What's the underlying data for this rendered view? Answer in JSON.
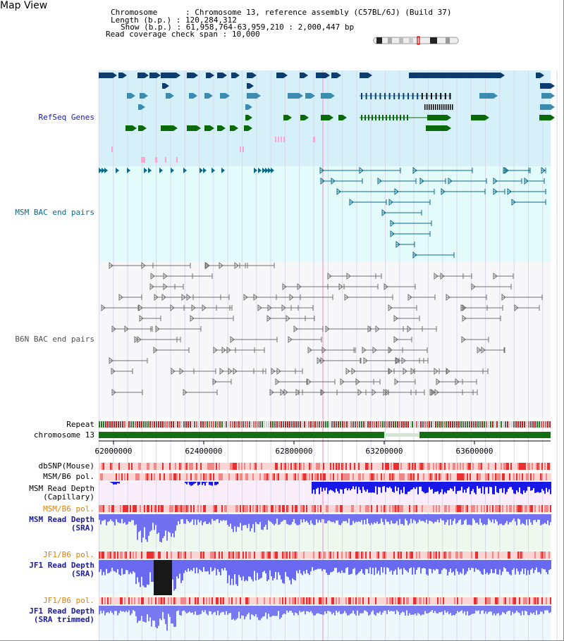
{
  "header": {
    "view_title": "Map View",
    "chromosome_label": "Chromosome",
    "chromosome_value": "Chromosome 13, reference assembly (C57BL/6J) (Build 37)",
    "length_label": "Length (b.p.)",
    "length_value": "120,284,312",
    "show_label": "Show (b.p.)",
    "show_value": "61,958,764-63,959,210 : 2,000,447 bp",
    "coverage_label": "Read coverage check span",
    "coverage_value": "10,000"
  },
  "tracks": {
    "refseq": "RefSeq Genes",
    "msm_bac": "MSM BAC end pairs",
    "b6n_bac": "B6N BAC end pairs",
    "repeat": "Repeat",
    "chromosome": "chromosome 13",
    "dbsnp": "dbSNP(Mouse)",
    "msm_b6_pol": "MSM/B6 pol.",
    "msm_depth_cap_1": "MSM Read Depth",
    "msm_depth_cap_2": "(Capillary)",
    "msm_b6_pol_sra": "MSM/B6 pol.",
    "msm_depth_sra_1": "MSM Read Depth",
    "msm_depth_sra_2": "(SRA)",
    "jf1_b6_pol": "JF1/B6 pol.",
    "jf1_depth_1": "JF1 Read Depth",
    "jf1_depth_2": "(SRA)",
    "jf1_b6_pol_2": "JF1/B6 pol.",
    "jf1_trim_1": "JF1 Read Depth",
    "jf1_trim_2": "(SRA trimmed)"
  },
  "axis": {
    "ticks": [
      "62000000",
      "62400000",
      "62800000",
      "63200000",
      "63600000"
    ]
  },
  "colors": {
    "refseq_label": "#1a1aa0",
    "msm_label": "#0a6a8a",
    "b6n_label": "#505050",
    "orange_label": "#e08000",
    "blue_label": "#1a1aa0",
    "refseq_bg": "#d6f0fa",
    "msm_bg": "#e4fbfb",
    "b6n_bg": "#f7f7fa"
  }
}
